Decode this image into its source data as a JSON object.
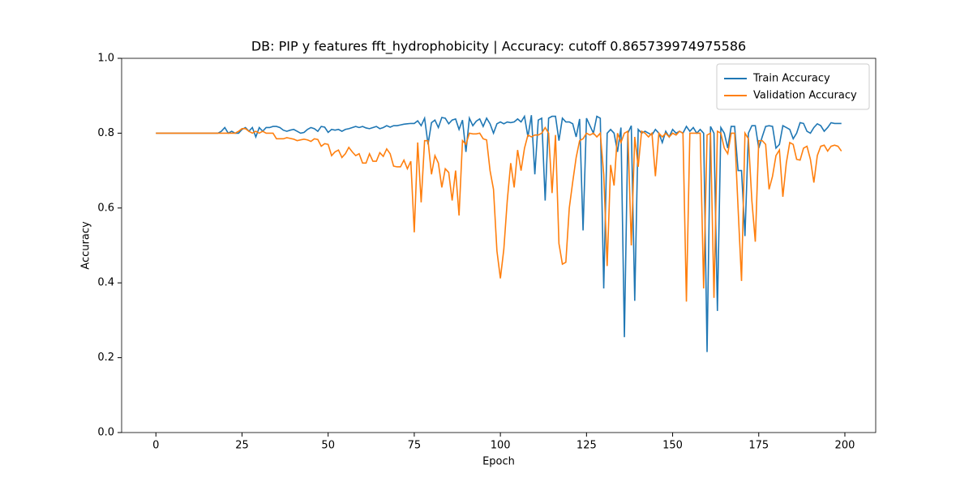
{
  "chart_data": {
    "type": "line",
    "title": "DB: PIP y features fft_hydrophobicity | Accuracy: cutoff 0.865739974975586",
    "x_label": "Epoch",
    "y_label": "Accuracy",
    "x": [
      0,
      1,
      2,
      3,
      4,
      5,
      6,
      7,
      8,
      9,
      10,
      11,
      12,
      13,
      14,
      15,
      16,
      17,
      18,
      19,
      20,
      21,
      22,
      23,
      24,
      25,
      26,
      27,
      28,
      29,
      30,
      31,
      32,
      33,
      34,
      35,
      36,
      37,
      38,
      39,
      40,
      41,
      42,
      43,
      44,
      45,
      46,
      47,
      48,
      49,
      50,
      51,
      52,
      53,
      54,
      55,
      56,
      57,
      58,
      59,
      60,
      61,
      62,
      63,
      64,
      65,
      66,
      67,
      68,
      69,
      70,
      71,
      72,
      73,
      74,
      75,
      76,
      77,
      78,
      79,
      80,
      81,
      82,
      83,
      84,
      85,
      86,
      87,
      88,
      89,
      90,
      91,
      92,
      93,
      94,
      95,
      96,
      97,
      98,
      99,
      100,
      101,
      102,
      103,
      104,
      105,
      106,
      107,
      108,
      109,
      110,
      111,
      112,
      113,
      114,
      115,
      116,
      117,
      118,
      119,
      120,
      121,
      122,
      123,
      124,
      125,
      126,
      127,
      128,
      129,
      130,
      131,
      132,
      133,
      134,
      135,
      136,
      137,
      138,
      139,
      140,
      141,
      142,
      143,
      144,
      145,
      146,
      147,
      148,
      149,
      150,
      151,
      152,
      153,
      154,
      155,
      156,
      157,
      158,
      159,
      160,
      161,
      162,
      163,
      164,
      165,
      166,
      167,
      168,
      169,
      170,
      171,
      172,
      173,
      174,
      175,
      176,
      177,
      178,
      179,
      180,
      181,
      182,
      183,
      184,
      185,
      186,
      187,
      188,
      189,
      190,
      191,
      192,
      193,
      194,
      195,
      196,
      197,
      198,
      199
    ],
    "series": [
      {
        "name": "Train Accuracy",
        "color": "#1f77b4",
        "values": [
          0.8,
          0.8,
          0.8,
          0.8,
          0.8,
          0.8,
          0.8,
          0.8,
          0.8,
          0.8,
          0.8,
          0.8,
          0.8,
          0.8,
          0.8,
          0.8,
          0.8,
          0.8,
          0.8,
          0.805,
          0.815,
          0.8,
          0.805,
          0.8,
          0.8,
          0.81,
          0.815,
          0.805,
          0.815,
          0.79,
          0.815,
          0.805,
          0.815,
          0.815,
          0.818,
          0.818,
          0.815,
          0.808,
          0.805,
          0.808,
          0.81,
          0.805,
          0.8,
          0.802,
          0.81,
          0.815,
          0.812,
          0.805,
          0.818,
          0.816,
          0.802,
          0.81,
          0.808,
          0.81,
          0.805,
          0.81,
          0.812,
          0.815,
          0.818,
          0.815,
          0.818,
          0.814,
          0.812,
          0.815,
          0.818,
          0.812,
          0.815,
          0.82,
          0.816,
          0.82,
          0.82,
          0.822,
          0.824,
          0.825,
          0.826,
          0.826,
          0.833,
          0.82,
          0.84,
          0.77,
          0.828,
          0.835,
          0.815,
          0.842,
          0.84,
          0.825,
          0.835,
          0.838,
          0.81,
          0.835,
          0.75,
          0.84,
          0.82,
          0.832,
          0.838,
          0.818,
          0.84,
          0.825,
          0.8,
          0.825,
          0.83,
          0.825,
          0.83,
          0.828,
          0.83,
          0.838,
          0.83,
          0.845,
          0.79,
          0.848,
          0.69,
          0.835,
          0.84,
          0.62,
          0.84,
          0.845,
          0.845,
          0.78,
          0.84,
          0.83,
          0.83,
          0.825,
          0.79,
          0.838,
          0.54,
          0.84,
          0.82,
          0.8,
          0.845,
          0.84,
          0.385,
          0.8,
          0.81,
          0.8,
          0.75,
          0.815,
          0.255,
          0.8,
          0.82,
          0.352,
          0.81,
          0.8,
          0.805,
          0.8,
          0.795,
          0.81,
          0.8,
          0.775,
          0.805,
          0.79,
          0.81,
          0.8,
          0.805,
          0.8,
          0.818,
          0.805,
          0.815,
          0.8,
          0.81,
          0.8,
          0.215,
          0.818,
          0.8,
          0.325,
          0.815,
          0.8,
          0.76,
          0.818,
          0.818,
          0.7,
          0.7,
          0.525,
          0.8,
          0.82,
          0.82,
          0.76,
          0.79,
          0.818,
          0.82,
          0.818,
          0.76,
          0.77,
          0.82,
          0.815,
          0.81,
          0.785,
          0.8,
          0.828,
          0.826,
          0.805,
          0.8,
          0.815,
          0.825,
          0.82,
          0.805,
          0.815,
          0.828,
          0.826,
          0.826,
          0.826
        ]
      },
      {
        "name": "Validation Accuracy",
        "color": "#ff7f0e",
        "values": [
          0.8,
          0.8,
          0.8,
          0.8,
          0.8,
          0.8,
          0.8,
          0.8,
          0.8,
          0.8,
          0.8,
          0.8,
          0.8,
          0.8,
          0.8,
          0.8,
          0.8,
          0.8,
          0.8,
          0.8,
          0.8,
          0.8,
          0.8,
          0.8,
          0.805,
          0.812,
          0.812,
          0.805,
          0.8,
          0.805,
          0.8,
          0.805,
          0.8,
          0.8,
          0.8,
          0.785,
          0.785,
          0.785,
          0.788,
          0.786,
          0.784,
          0.78,
          0.782,
          0.784,
          0.782,
          0.778,
          0.785,
          0.783,
          0.765,
          0.772,
          0.77,
          0.74,
          0.75,
          0.755,
          0.735,
          0.745,
          0.762,
          0.75,
          0.74,
          0.745,
          0.72,
          0.72,
          0.745,
          0.725,
          0.725,
          0.748,
          0.738,
          0.758,
          0.745,
          0.712,
          0.71,
          0.71,
          0.728,
          0.705,
          0.725,
          0.535,
          0.775,
          0.615,
          0.78,
          0.78,
          0.69,
          0.74,
          0.72,
          0.655,
          0.705,
          0.695,
          0.62,
          0.7,
          0.58,
          0.78,
          0.77,
          0.8,
          0.798,
          0.798,
          0.8,
          0.785,
          0.782,
          0.7,
          0.65,
          0.485,
          0.412,
          0.49,
          0.62,
          0.72,
          0.655,
          0.755,
          0.7,
          0.76,
          0.795,
          0.79,
          0.795,
          0.795,
          0.8,
          0.815,
          0.8,
          0.64,
          0.795,
          0.505,
          0.45,
          0.455,
          0.6,
          0.67,
          0.735,
          0.78,
          0.785,
          0.8,
          0.795,
          0.8,
          0.79,
          0.8,
          0.69,
          0.445,
          0.715,
          0.66,
          0.8,
          0.775,
          0.8,
          0.805,
          0.5,
          0.79,
          0.71,
          0.805,
          0.8,
          0.79,
          0.8,
          0.685,
          0.8,
          0.79,
          0.8,
          0.79,
          0.8,
          0.795,
          0.805,
          0.8,
          0.35,
          0.8,
          0.8,
          0.8,
          0.8,
          0.385,
          0.795,
          0.8,
          0.36,
          0.805,
          0.8,
          0.76,
          0.745,
          0.8,
          0.8,
          0.6,
          0.405,
          0.8,
          0.785,
          0.62,
          0.51,
          0.78,
          0.78,
          0.77,
          0.65,
          0.685,
          0.74,
          0.755,
          0.63,
          0.72,
          0.775,
          0.77,
          0.73,
          0.728,
          0.76,
          0.765,
          0.73,
          0.668,
          0.74,
          0.765,
          0.768,
          0.752,
          0.765,
          0.768,
          0.765,
          0.752
        ]
      }
    ],
    "xlim": [
      -9.95,
      208.95
    ],
    "xticks": [
      0,
      25,
      50,
      75,
      100,
      125,
      150,
      175,
      200
    ],
    "ylim": [
      0,
      1
    ],
    "yticks": [
      {
        "value": 0,
        "label": "0.0"
      },
      {
        "value": 0.2,
        "label": "0.2"
      },
      {
        "value": 0.4,
        "label": "0.4"
      },
      {
        "value": 0.6,
        "label": "0.6"
      },
      {
        "value": 0.8,
        "label": "0.8"
      },
      {
        "value": 1,
        "label": "1.0"
      }
    ],
    "legend": "upper right",
    "grid": false
  }
}
